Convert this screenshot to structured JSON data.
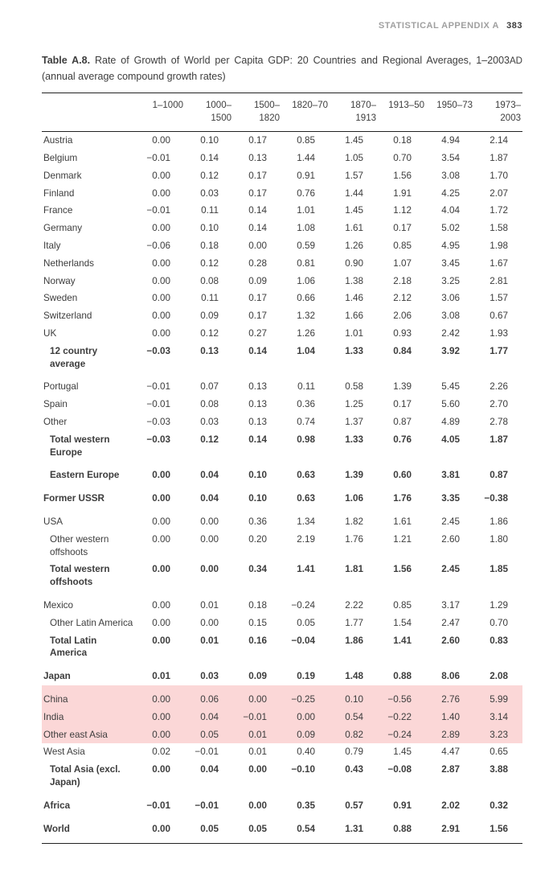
{
  "header": {
    "section": "STATISTICAL APPENDIX A",
    "page_number": "383"
  },
  "caption": {
    "label": "Table A.8.",
    "text_a": " Rate of Growth of World per Capita GDP: 20 Countries and Regional Averages, 1–2003",
    "smallcaps": "AD",
    "text_b": " (annual average compound growth rates)"
  },
  "columns": [
    "1–1000",
    "1000–1500",
    "1500–1820",
    "1820–70",
    "1870–1913",
    "1913–50",
    "1950–73",
    "1973–2003"
  ],
  "rows": [
    {
      "label": "Austria",
      "v": [
        "0.00",
        "0.10",
        "0.17",
        "0.85",
        "1.45",
        "0.18",
        "4.94",
        "2.14"
      ]
    },
    {
      "label": "Belgium",
      "v": [
        "−0.01",
        "0.14",
        "0.13",
        "1.44",
        "1.05",
        "0.70",
        "3.54",
        "1.87"
      ]
    },
    {
      "label": "Denmark",
      "v": [
        "0.00",
        "0.12",
        "0.17",
        "0.91",
        "1.57",
        "1.56",
        "3.08",
        "1.70"
      ]
    },
    {
      "label": "Finland",
      "v": [
        "0.00",
        "0.03",
        "0.17",
        "0.76",
        "1.44",
        "1.91",
        "4.25",
        "2.07"
      ]
    },
    {
      "label": "France",
      "v": [
        "−0.01",
        "0.11",
        "0.14",
        "1.01",
        "1.45",
        "1.12",
        "4.04",
        "1.72"
      ]
    },
    {
      "label": "Germany",
      "v": [
        "0.00",
        "0.10",
        "0.14",
        "1.08",
        "1.61",
        "0.17",
        "5.02",
        "1.58"
      ]
    },
    {
      "label": "Italy",
      "v": [
        "−0.06",
        "0.18",
        "0.00",
        "0.59",
        "1.26",
        "0.85",
        "4.95",
        "1.98"
      ]
    },
    {
      "label": "Netherlands",
      "v": [
        "0.00",
        "0.12",
        "0.28",
        "0.81",
        "0.90",
        "1.07",
        "3.45",
        "1.67"
      ]
    },
    {
      "label": "Norway",
      "v": [
        "0.00",
        "0.08",
        "0.09",
        "1.06",
        "1.38",
        "2.18",
        "3.25",
        "2.81"
      ]
    },
    {
      "label": "Sweden",
      "v": [
        "0.00",
        "0.11",
        "0.17",
        "0.66",
        "1.46",
        "2.12",
        "3.06",
        "1.57"
      ]
    },
    {
      "label": "Switzerland",
      "v": [
        "0.00",
        "0.09",
        "0.17",
        "1.32",
        "1.66",
        "2.06",
        "3.08",
        "0.67"
      ]
    },
    {
      "label": "UK",
      "v": [
        "0.00",
        "0.12",
        "0.27",
        "1.26",
        "1.01",
        "0.93",
        "2.42",
        "1.93"
      ]
    },
    {
      "label": "12 country average",
      "v": [
        "−0.03",
        "0.13",
        "0.14",
        "1.04",
        "1.33",
        "0.84",
        "3.92",
        "1.77"
      ],
      "bold": true,
      "indent": true
    },
    {
      "label": "Portugal",
      "v": [
        "−0.01",
        "0.07",
        "0.13",
        "0.11",
        "0.58",
        "1.39",
        "5.45",
        "2.26"
      ],
      "gap": true
    },
    {
      "label": "Spain",
      "v": [
        "−0.01",
        "0.08",
        "0.13",
        "0.36",
        "1.25",
        "0.17",
        "5.60",
        "2.70"
      ]
    },
    {
      "label": "Other",
      "v": [
        "−0.03",
        "0.03",
        "0.13",
        "0.74",
        "1.37",
        "0.87",
        "4.89",
        "2.78"
      ]
    },
    {
      "label": "Total western Europe",
      "v": [
        "−0.03",
        "0.12",
        "0.14",
        "0.98",
        "1.33",
        "0.76",
        "4.05",
        "1.87"
      ],
      "bold": true,
      "indent": true
    },
    {
      "label": "Eastern Europe",
      "v": [
        "0.00",
        "0.04",
        "0.10",
        "0.63",
        "1.39",
        "0.60",
        "3.81",
        "0.87"
      ],
      "bold": true,
      "gap": true,
      "indent": true
    },
    {
      "label": "Former USSR",
      "v": [
        "0.00",
        "0.04",
        "0.10",
        "0.63",
        "1.06",
        "1.76",
        "3.35",
        "−0.38"
      ],
      "bold": true,
      "gap": true
    },
    {
      "label": "USA",
      "v": [
        "0.00",
        "0.00",
        "0.36",
        "1.34",
        "1.82",
        "1.61",
        "2.45",
        "1.86"
      ],
      "gap": true
    },
    {
      "label": "Other western offshoots",
      "v": [
        "0.00",
        "0.00",
        "0.20",
        "2.19",
        "1.76",
        "1.21",
        "2.60",
        "1.80"
      ],
      "indent": true
    },
    {
      "label": "Total western offshoots",
      "v": [
        "0.00",
        "0.00",
        "0.34",
        "1.41",
        "1.81",
        "1.56",
        "2.45",
        "1.85"
      ],
      "bold": true,
      "indent": true
    },
    {
      "label": "Mexico",
      "v": [
        "0.00",
        "0.01",
        "0.18",
        "−0.24",
        "2.22",
        "0.85",
        "3.17",
        "1.29"
      ],
      "gap": true
    },
    {
      "label": "Other Latin America",
      "v": [
        "0.00",
        "0.00",
        "0.15",
        "0.05",
        "1.77",
        "1.54",
        "2.47",
        "0.70"
      ],
      "indent": true
    },
    {
      "label": "Total Latin America",
      "v": [
        "0.00",
        "0.01",
        "0.16",
        "−0.04",
        "1.86",
        "1.41",
        "2.60",
        "0.83"
      ],
      "bold": true,
      "indent": true
    },
    {
      "label": "Japan",
      "v": [
        "0.01",
        "0.03",
        "0.09",
        "0.19",
        "1.48",
        "0.88",
        "8.06",
        "2.08"
      ],
      "bold": true,
      "gap": true
    },
    {
      "label": "China",
      "v": [
        "0.00",
        "0.06",
        "0.00",
        "−0.25",
        "0.10",
        "−0.56",
        "2.76",
        "5.99"
      ],
      "gap": true,
      "highlight": true
    },
    {
      "label": "India",
      "v": [
        "0.00",
        "0.04",
        "−0.01",
        "0.00",
        "0.54",
        "−0.22",
        "1.40",
        "3.14"
      ],
      "highlight": true
    },
    {
      "label": "Other east Asia",
      "v": [
        "0.00",
        "0.05",
        "0.01",
        "0.09",
        "0.82",
        "−0.24",
        "2.89",
        "3.23"
      ],
      "highlight": true
    },
    {
      "label": "West Asia",
      "v": [
        "0.02",
        "−0.01",
        "0.01",
        "0.40",
        "0.79",
        "1.45",
        "4.47",
        "0.65"
      ]
    },
    {
      "label": "Total Asia (excl. Japan)",
      "v": [
        "0.00",
        "0.04",
        "0.00",
        "−0.10",
        "0.43",
        "−0.08",
        "2.87",
        "3.88"
      ],
      "bold": true,
      "indent": true
    },
    {
      "label": "Africa",
      "v": [
        "−0.01",
        "−0.01",
        "0.00",
        "0.35",
        "0.57",
        "0.91",
        "2.02",
        "0.32"
      ],
      "bold": true,
      "gap": true
    },
    {
      "label": "World",
      "v": [
        "0.00",
        "0.05",
        "0.05",
        "0.54",
        "1.31",
        "0.88",
        "2.91",
        "1.56"
      ],
      "bold": true,
      "gap": true,
      "bottom": true
    }
  ],
  "style": {
    "highlight_color": "#fbd7d7",
    "text_color": "#3d3d3d",
    "rule_color": "#222222",
    "header_grey": "#a0a0a0",
    "font_size_body": 11.7,
    "font_size_caption": 12.5
  }
}
